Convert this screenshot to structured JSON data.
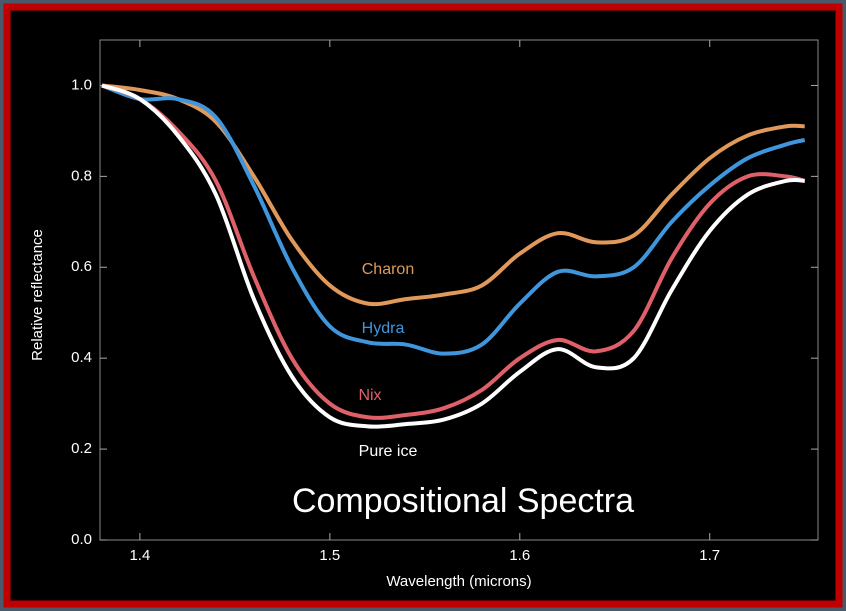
{
  "chart_data": {
    "type": "line",
    "annotation": "Compositional Spectra",
    "xlabel": "Wavelength (microns)",
    "ylabel": "Relative reflectance",
    "x": [
      1.38,
      1.4,
      1.42,
      1.44,
      1.46,
      1.48,
      1.5,
      1.52,
      1.54,
      1.56,
      1.58,
      1.6,
      1.62,
      1.64,
      1.66,
      1.68,
      1.7,
      1.72,
      1.74,
      1.75
    ],
    "series": [
      {
        "name": "Charon",
        "color": "#e0995a",
        "values": [
          1.0,
          0.99,
          0.97,
          0.92,
          0.8,
          0.66,
          0.56,
          0.52,
          0.53,
          0.54,
          0.56,
          0.63,
          0.675,
          0.655,
          0.67,
          0.76,
          0.84,
          0.89,
          0.91,
          0.91
        ]
      },
      {
        "name": "Hydra",
        "color": "#3f96dc",
        "values": [
          1.0,
          0.97,
          0.97,
          0.93,
          0.78,
          0.6,
          0.47,
          0.435,
          0.43,
          0.41,
          0.43,
          0.52,
          0.59,
          0.58,
          0.6,
          0.7,
          0.78,
          0.84,
          0.87,
          0.88
        ]
      },
      {
        "name": "Nix",
        "color": "#e0606a",
        "values": [
          1.0,
          0.97,
          0.9,
          0.79,
          0.58,
          0.4,
          0.3,
          0.27,
          0.275,
          0.29,
          0.33,
          0.4,
          0.44,
          0.415,
          0.46,
          0.62,
          0.74,
          0.8,
          0.8,
          0.79
        ]
      },
      {
        "name": "Pure ice",
        "color": "#ffffff",
        "values": [
          1.0,
          0.97,
          0.89,
          0.76,
          0.53,
          0.36,
          0.27,
          0.25,
          0.255,
          0.265,
          0.3,
          0.37,
          0.42,
          0.38,
          0.4,
          0.55,
          0.68,
          0.76,
          0.79,
          0.79
        ]
      }
    ],
    "xlim": [
      1.379,
      1.757
    ],
    "ylim": [
      0,
      1.1
    ],
    "xticks": [
      1.4,
      1.5,
      1.6,
      1.7
    ],
    "yticks": [
      {
        "value": 0,
        "label": "0.0"
      },
      0.2,
      0.4,
      0.6,
      0.8,
      {
        "value": 1,
        "label": "1.0"
      }
    ],
    "grid": false
  }
}
